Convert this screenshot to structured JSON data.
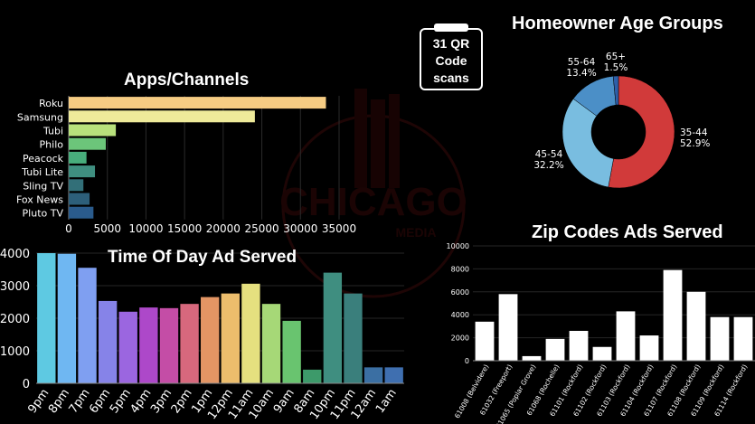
{
  "watermark": {
    "text": "CHICAGO",
    "sub": "MEDIA"
  },
  "qr_callout": {
    "line1": "31 QR",
    "line2": "Code",
    "line3": "scans"
  },
  "chart_data": [
    {
      "id": "apps",
      "type": "bar",
      "orientation": "horizontal",
      "title": "Apps/Channels",
      "categories": [
        "Roku",
        "Samsung",
        "Tubi",
        "Philo",
        "Peacock",
        "Tubi Lite",
        "Sling TV",
        "Fox News",
        "Pluto TV"
      ],
      "values": [
        33300,
        24100,
        6100,
        4800,
        2300,
        3400,
        1900,
        2700,
        3200
      ],
      "colors": [
        "#f6cc83",
        "#eeea9a",
        "#b8e07c",
        "#6cc57a",
        "#48ad7c",
        "#3f8f80",
        "#326f78",
        "#2d5f7a",
        "#2a5b8c"
      ],
      "xticks": [
        0,
        5000,
        10000,
        15000,
        20000,
        25000,
        30000,
        35000
      ],
      "xlim": [
        0,
        35000
      ]
    },
    {
      "id": "time",
      "type": "bar",
      "title": "Time Of Day Ad Served",
      "categories": [
        "9pm",
        "8pm",
        "7pm",
        "6pm",
        "5pm",
        "4pm",
        "3pm",
        "2pm",
        "1pm",
        "12pm",
        "11am",
        "10am",
        "9am",
        "8am",
        "10pm",
        "11pm",
        "12am",
        "1am"
      ],
      "values": [
        4000,
        3980,
        3550,
        2530,
        2200,
        2330,
        2310,
        2440,
        2650,
        2760,
        3060,
        2440,
        1920,
        420,
        3400,
        2760,
        490,
        490
      ],
      "colors": [
        "#5ec9e2",
        "#6fb7f2",
        "#7f9ff1",
        "#8683e8",
        "#9b66e0",
        "#ad48c9",
        "#c44da6",
        "#d7687d",
        "#e39564",
        "#ecbd6c",
        "#e5e07f",
        "#a6d877",
        "#69c46f",
        "#3d9a6a",
        "#3f8e80",
        "#3a7f7c",
        "#3b6fa3",
        "#3f6fb0"
      ],
      "yticks": [
        0,
        1000,
        2000,
        3000,
        4000
      ],
      "ylim": [
        0,
        4000
      ]
    },
    {
      "id": "age",
      "type": "pie",
      "title": "Homeowner Age Groups",
      "slices": [
        {
          "label": "35-44",
          "pct": "52.9%",
          "value": 52.9,
          "color": "#d13a3a"
        },
        {
          "label": "45-54",
          "pct": "32.2%",
          "value": 32.2,
          "color": "#79bde0"
        },
        {
          "label": "55-64",
          "pct": "13.4%",
          "value": 13.4,
          "color": "#4b8fc7"
        },
        {
          "label": "65+",
          "pct": "1.5%",
          "value": 1.5,
          "color": "#2e5fa8"
        }
      ]
    },
    {
      "id": "zip",
      "type": "bar",
      "title": "Zip Codes Ads Served",
      "categories": [
        "61008 (Belvidere)",
        "61032 (Freeport)",
        "61065 (Poplar Grove)",
        "61068 (Rochelle)",
        "61101 (Rockford)",
        "61102 (Rockford)",
        "61103 (Rockford)",
        "61104 (Rockford)",
        "61107 (Rockford)",
        "61108 (Rockford)",
        "61109 (Rockford)",
        "61114 (Rockford)"
      ],
      "values": [
        3400,
        5800,
        400,
        1900,
        2600,
        1200,
        4300,
        2200,
        7900,
        6000,
        3800,
        3800
      ],
      "color": "#ffffff",
      "yticks": [
        0,
        2000,
        4000,
        6000,
        8000,
        10000
      ],
      "ylim": [
        0,
        10000
      ]
    }
  ]
}
